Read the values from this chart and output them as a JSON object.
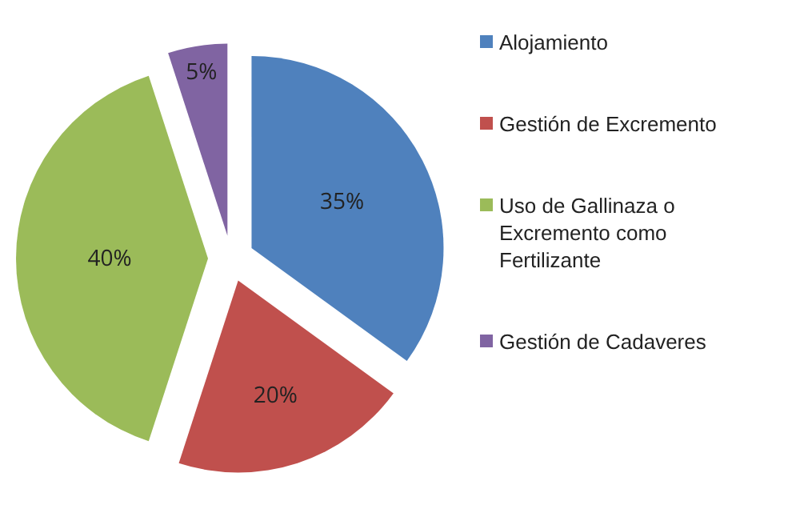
{
  "chart_data": {
    "type": "pie",
    "categories": [
      "Alojamiento",
      "Gestión de Excremento",
      "Uso de Gallinaza o Excremento como Fertilizante",
      "Gestión de Cadaveres"
    ],
    "values": [
      35,
      20,
      40,
      5
    ],
    "value_labels": [
      "35%",
      "20%",
      "40%",
      "5%"
    ],
    "colors": [
      "#4f81bd",
      "#c0504d",
      "#9bbb59",
      "#8064a2"
    ],
    "legend": "right"
  }
}
